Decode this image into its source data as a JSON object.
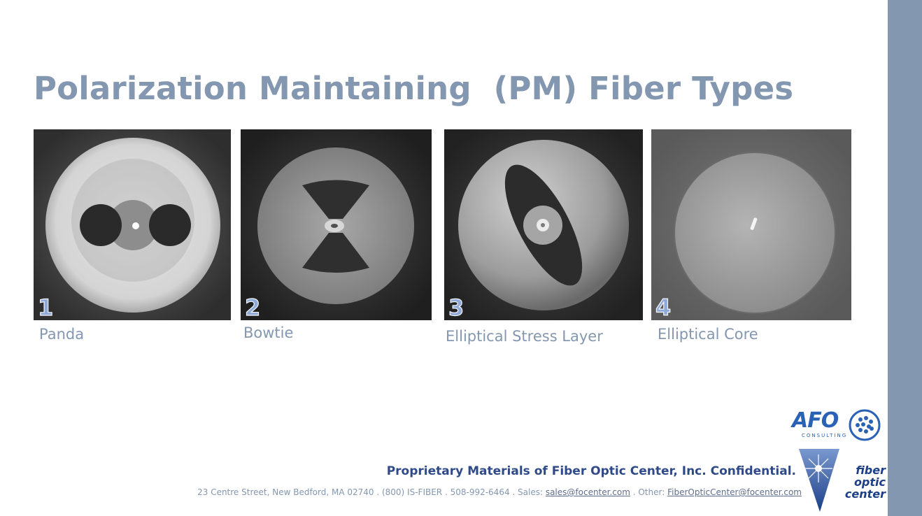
{
  "slide": {
    "title": "Polarization Maintaining  (PM) Fiber Types",
    "panels": [
      {
        "number": "1",
        "caption": "Panda"
      },
      {
        "number": "2",
        "caption": "Bowtie"
      },
      {
        "number": "3",
        "caption": "Elliptical Stress Layer"
      },
      {
        "number": "4",
        "caption": "Elliptical Core"
      }
    ],
    "footer": {
      "confidential": "Proprietary Materials of Fiber Optic Center, Inc. Confidential.",
      "address_prefix": "23 Centre Street, New Bedford, MA 02740 . (800) IS-FIBER . 508-992-6464 . Sales: ",
      "sales_email": "sales@focenter.com",
      "other_label": " . Other: ",
      "other_email": "FiberOpticCenter@focenter.com"
    },
    "logos": {
      "afo_text": "AFO",
      "afo_sub": "CONSULTING",
      "foc_line1": "fiber",
      "foc_line2": "optic",
      "foc_line3": "center"
    }
  },
  "colors": {
    "accent": "#8497b0",
    "navy": "#2f4a88",
    "number_fill": "#8fa9d8"
  }
}
